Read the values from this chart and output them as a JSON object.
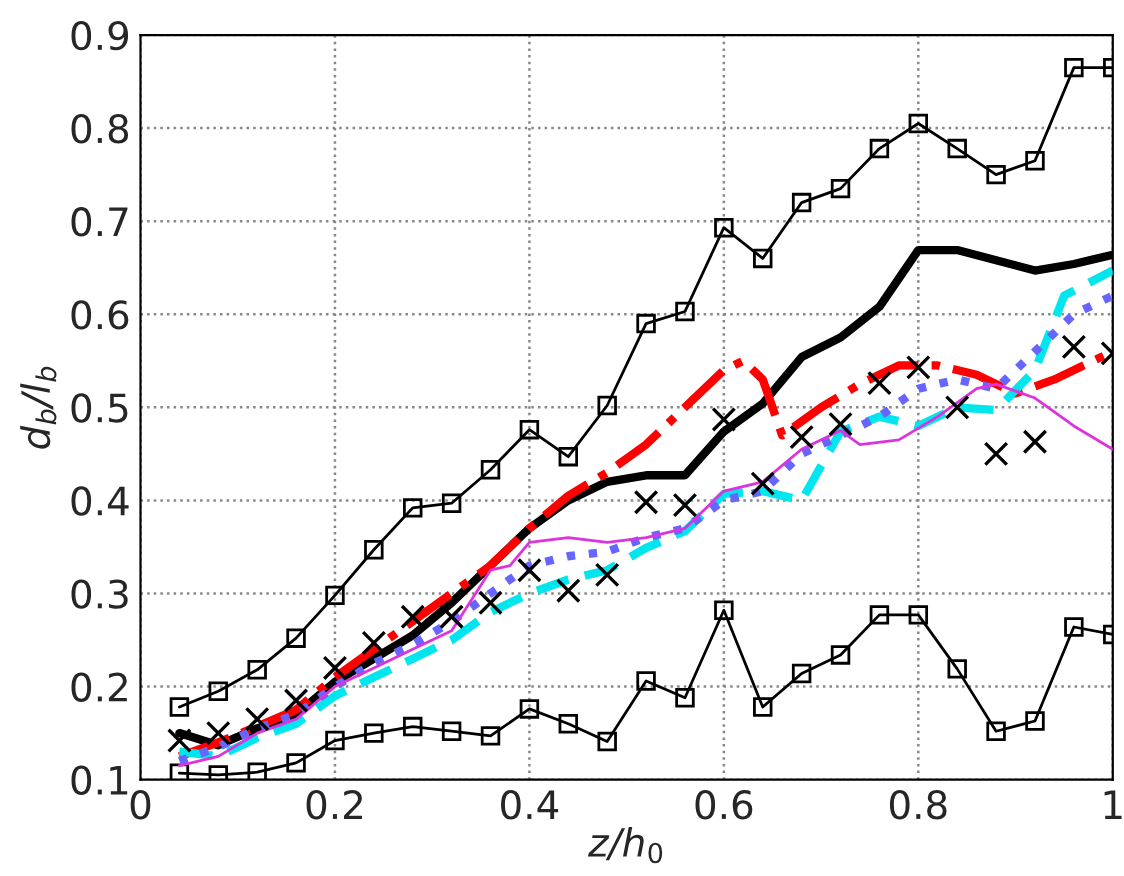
{
  "chart_data": {
    "type": "line",
    "xlabel": "z/h$_{0}$",
    "ylabel": "d$_{b}$/l$_{b}$",
    "xlim": [
      0,
      1
    ],
    "ylim": [
      0.1,
      0.9
    ],
    "xticks": [
      0,
      0.2,
      0.4,
      0.6,
      0.8,
      1
    ],
    "yticks": [
      0.1,
      0.2,
      0.3,
      0.4,
      0.5,
      0.6,
      0.7,
      0.8,
      0.9
    ],
    "grid": true,
    "series": [
      {
        "color": "#000000",
        "marker": "square",
        "line_style": "solid",
        "x": [
          0.04,
          0.08,
          0.12,
          0.16,
          0.2,
          0.24,
          0.28,
          0.32,
          0.36,
          0.4,
          0.44,
          0.48,
          0.52,
          0.56,
          0.6,
          0.64,
          0.68,
          0.72,
          0.76,
          0.8,
          0.84,
          0.88,
          0.92,
          0.96,
          1.0
        ],
        "values": [
          0.178,
          0.195,
          0.218,
          0.252,
          0.298,
          0.347,
          0.392,
          0.397,
          0.433,
          0.476,
          0.447,
          0.502,
          0.59,
          0.603,
          0.693,
          0.66,
          0.72,
          0.735,
          0.778,
          0.805,
          0.778,
          0.75,
          0.765,
          0.865,
          0.865
        ]
      },
      {
        "color": "#000000",
        "marker": "square",
        "line_style": "solid",
        "x": [
          0.04,
          0.08,
          0.12,
          0.16,
          0.2,
          0.24,
          0.28,
          0.32,
          0.36,
          0.4,
          0.44,
          0.48,
          0.52,
          0.56,
          0.6,
          0.64,
          0.68,
          0.72,
          0.76,
          0.8,
          0.84,
          0.88,
          0.92,
          0.96,
          1.0
        ],
        "values": [
          0.107,
          0.105,
          0.108,
          0.118,
          0.142,
          0.15,
          0.157,
          0.152,
          0.147,
          0.176,
          0.16,
          0.141,
          0.206,
          0.188,
          0.282,
          0.178,
          0.214,
          0.234,
          0.277,
          0.277,
          0.219,
          0.152,
          0.163,
          0.264,
          0.256
        ]
      },
      {
        "type": "scatter",
        "color": "#000000",
        "marker": "cross",
        "x": [
          0.04,
          0.08,
          0.12,
          0.16,
          0.2,
          0.24,
          0.28,
          0.32,
          0.36,
          0.4,
          0.44,
          0.48,
          0.52,
          0.56,
          0.6,
          0.64,
          0.68,
          0.72,
          0.76,
          0.8,
          0.84,
          0.88,
          0.92,
          0.96,
          1.0
        ],
        "values": [
          0.142,
          0.15,
          0.165,
          0.185,
          0.22,
          0.247,
          0.275,
          0.275,
          0.29,
          0.325,
          0.303,
          0.32,
          0.398,
          0.395,
          0.487,
          0.418,
          0.468,
          0.482,
          0.526,
          0.543,
          0.5,
          0.45,
          0.463,
          0.565,
          0.558
        ]
      },
      {
        "color": "#000000",
        "line_style": "solid",
        "x": [
          0.04,
          0.08,
          0.12,
          0.16,
          0.2,
          0.24,
          0.28,
          0.32,
          0.36,
          0.4,
          0.44,
          0.48,
          0.52,
          0.56,
          0.6,
          0.64,
          0.68,
          0.72,
          0.76,
          0.8,
          0.84,
          0.88,
          0.92,
          0.96,
          1.0
        ],
        "values": [
          0.15,
          0.137,
          0.155,
          0.17,
          0.205,
          0.23,
          0.255,
          0.29,
          0.33,
          0.37,
          0.4,
          0.42,
          0.427,
          0.427,
          0.474,
          0.504,
          0.554,
          0.575,
          0.608,
          0.669,
          0.669,
          0.658,
          0.647,
          0.654,
          0.664
        ]
      },
      {
        "color": "#ff0000",
        "line_style": "dashdot",
        "x": [
          0.04,
          0.08,
          0.12,
          0.16,
          0.2,
          0.24,
          0.28,
          0.32,
          0.36,
          0.4,
          0.44,
          0.48,
          0.52,
          0.56,
          0.6,
          0.62,
          0.64,
          0.66,
          0.7,
          0.74,
          0.78,
          0.82,
          0.86,
          0.9,
          0.94,
          0.98,
          1.0
        ],
        "values": [
          0.125,
          0.14,
          0.157,
          0.175,
          0.21,
          0.24,
          0.27,
          0.3,
          0.33,
          0.37,
          0.405,
          0.43,
          0.46,
          0.5,
          0.54,
          0.55,
          0.53,
          0.47,
          0.5,
          0.525,
          0.545,
          0.545,
          0.535,
          0.515,
          0.53,
          0.55,
          0.56
        ]
      },
      {
        "color": "#00e5ee",
        "line_style": "dashed",
        "x": [
          0.04,
          0.08,
          0.12,
          0.16,
          0.2,
          0.24,
          0.28,
          0.32,
          0.36,
          0.4,
          0.44,
          0.48,
          0.52,
          0.56,
          0.6,
          0.64,
          0.68,
          0.72,
          0.76,
          0.8,
          0.84,
          0.88,
          0.92,
          0.95,
          1.0
        ],
        "values": [
          0.13,
          0.125,
          0.145,
          0.16,
          0.19,
          0.21,
          0.23,
          0.25,
          0.28,
          0.3,
          0.315,
          0.325,
          0.349,
          0.367,
          0.407,
          0.41,
          0.4,
          0.474,
          0.49,
          0.48,
          0.5,
          0.497,
          0.54,
          0.62,
          0.647
        ]
      },
      {
        "color": "#6666ff",
        "line_style": "dotted",
        "x": [
          0.04,
          0.08,
          0.12,
          0.16,
          0.2,
          0.24,
          0.28,
          0.32,
          0.36,
          0.4,
          0.44,
          0.48,
          0.52,
          0.56,
          0.6,
          0.64,
          0.68,
          0.72,
          0.76,
          0.8,
          0.84,
          0.88,
          0.92,
          0.96,
          1.0
        ],
        "values": [
          0.12,
          0.135,
          0.155,
          0.17,
          0.2,
          0.225,
          0.245,
          0.27,
          0.3,
          0.33,
          0.34,
          0.345,
          0.36,
          0.37,
          0.4,
          0.41,
          0.45,
          0.47,
          0.49,
          0.52,
          0.53,
          0.52,
          0.56,
          0.6,
          0.62
        ]
      },
      {
        "color": "#dd33dd",
        "line_style": "solid",
        "x": [
          0.04,
          0.08,
          0.12,
          0.16,
          0.2,
          0.24,
          0.28,
          0.32,
          0.36,
          0.38,
          0.4,
          0.44,
          0.48,
          0.52,
          0.56,
          0.6,
          0.64,
          0.68,
          0.72,
          0.74,
          0.78,
          0.82,
          0.86,
          0.88,
          0.92,
          0.96,
          1.0
        ],
        "values": [
          0.115,
          0.125,
          0.15,
          0.165,
          0.2,
          0.22,
          0.24,
          0.26,
          0.325,
          0.33,
          0.355,
          0.36,
          0.355,
          0.36,
          0.37,
          0.41,
          0.42,
          0.455,
          0.475,
          0.46,
          0.465,
          0.49,
          0.52,
          0.525,
          0.51,
          0.48,
          0.455
        ]
      }
    ]
  }
}
